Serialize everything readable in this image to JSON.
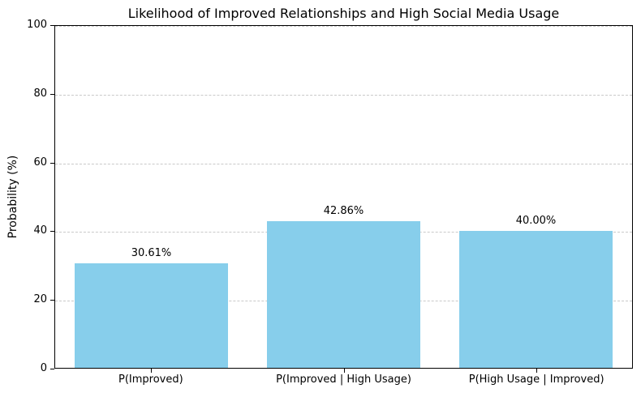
{
  "chart_data": {
    "type": "bar",
    "title": "Likelihood of Improved Relationships and High Social Media Usage",
    "categories": [
      "P(Improved)",
      "P(Improved | High Usage)",
      "P(High Usage | Improved)"
    ],
    "values": [
      30.61,
      42.86,
      40.0
    ],
    "value_labels": [
      "30.61%",
      "42.86%",
      "40.00%"
    ],
    "xlabel": "",
    "ylabel": "Probability (%)",
    "ylim": [
      0,
      100
    ],
    "yticks": [
      0,
      20,
      40,
      60,
      80,
      100
    ],
    "bar_color": "#87CEEB",
    "grid": "horizontal dashed",
    "grid_color": "#c9c9c9",
    "legend": "none"
  }
}
